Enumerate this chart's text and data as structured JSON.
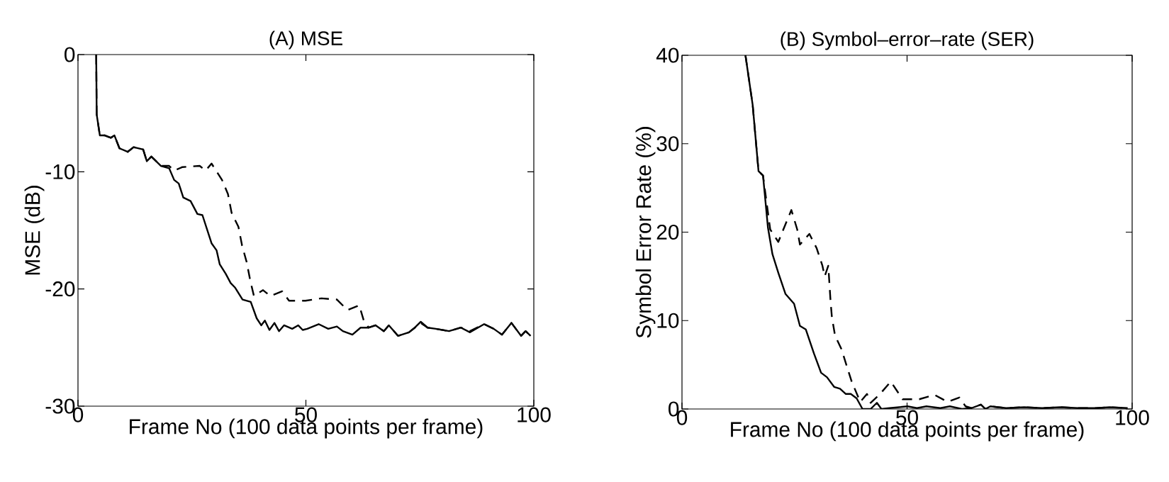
{
  "chart_data": [
    {
      "type": "line",
      "title": "(A) MSE",
      "xlabel": "Frame No (100 data points per frame)",
      "ylabel": "MSE (dB)",
      "xlim": [
        0,
        100
      ],
      "ylim": [
        -30,
        0
      ],
      "xticks": [
        0,
        50,
        100
      ],
      "yticks": [
        -30,
        -20,
        -10,
        0
      ],
      "series": [
        {
          "color": "#000000",
          "line_style": "solid",
          "x": [
            4,
            4.1,
            4.8,
            5.9,
            7.2,
            8.0,
            9.1,
            10.9,
            12.2,
            14.3,
            15.1,
            16.1,
            18.2,
            20.0,
            21.1,
            22.1,
            23.1,
            24.7,
            26.2,
            27.3,
            29.3,
            30.4,
            31.1,
            32.4,
            33.5,
            34.5,
            36.1,
            37.9,
            39.2,
            40.2,
            41.0,
            42.0,
            43.1,
            44.1,
            45.2,
            47.0,
            48.3,
            49.3,
            50.3,
            52.8,
            54.9,
            56.8,
            58.1,
            60.2,
            62.0,
            63.8,
            65.3,
            67.1,
            68.2,
            70.2,
            72.6,
            73.9,
            75.2,
            76.7,
            78.5,
            81.4,
            84.0,
            86.0,
            89.1,
            91.2,
            93.0,
            95.1,
            97.2,
            98.2,
            99.3
          ],
          "values": [
            0,
            -5.1,
            -6.9,
            -6.9,
            -7.1,
            -6.9,
            -8.0,
            -8.3,
            -7.9,
            -8.1,
            -9.1,
            -8.7,
            -9.5,
            -9.7,
            -10.7,
            -11.0,
            -12.2,
            -12.5,
            -13.6,
            -13.7,
            -16.1,
            -16.7,
            -17.9,
            -18.7,
            -19.5,
            -19.9,
            -20.9,
            -21.1,
            -22.5,
            -23.1,
            -22.7,
            -23.5,
            -22.9,
            -23.6,
            -23.1,
            -23.4,
            -23.1,
            -23.5,
            -23.4,
            -23.0,
            -23.4,
            -23.2,
            -23.6,
            -23.9,
            -23.3,
            -23.3,
            -23.1,
            -23.6,
            -23.1,
            -24.0,
            -23.7,
            -23.3,
            -22.8,
            -23.3,
            -23.4,
            -23.6,
            -23.3,
            -23.7,
            -23.0,
            -23.4,
            -23.9,
            -22.9,
            -24.0,
            -23.6,
            -24.0
          ]
        },
        {
          "color": "#000000",
          "line_style": "dashed",
          "x": [
            4,
            4.1,
            4.8,
            5.9,
            7.2,
            8.0,
            9.1,
            10.9,
            12.2,
            14.3,
            15.1,
            16.1,
            18.2,
            20.0,
            21.1,
            22.9,
            26.7,
            28.0,
            29.3,
            31.6,
            32.9,
            33.7,
            35.2,
            36.0,
            37.0,
            37.8,
            38.6,
            40.6,
            42.2,
            44.8,
            46.3,
            49.9,
            53.4,
            56.8,
            59.1,
            61.7,
            62.7,
            63.8,
            65.3,
            67.1,
            68.2,
            70.2,
            72.6,
            73.9,
            75.2,
            76.7,
            78.5,
            81.4,
            84.0,
            86.0,
            89.1,
            91.2,
            93.0,
            95.1,
            97.2,
            98.2,
            99.3
          ],
          "values": [
            0,
            -5.1,
            -6.9,
            -6.9,
            -7.1,
            -6.9,
            -8.0,
            -8.3,
            -7.9,
            -8.1,
            -9.1,
            -8.7,
            -9.5,
            -9.5,
            -9.9,
            -9.6,
            -9.5,
            -9.9,
            -9.3,
            -10.7,
            -11.9,
            -13.5,
            -14.7,
            -16.3,
            -17.7,
            -19.3,
            -20.6,
            -20.1,
            -20.6,
            -20.2,
            -21.0,
            -21.0,
            -20.8,
            -20.9,
            -21.8,
            -21.4,
            -22.7,
            -23.3,
            -23.1,
            -23.6,
            -23.1,
            -24.0,
            -23.7,
            -23.3,
            -22.9,
            -23.3,
            -23.4,
            -23.6,
            -23.3,
            -23.6,
            -23.0,
            -23.4,
            -23.9,
            -22.9,
            -24.0,
            -23.6,
            -24.0
          ]
        }
      ]
    },
    {
      "type": "line",
      "title": "(B) Symbol–error–rate (SER)",
      "xlabel": "Frame No (100 data points per frame)",
      "ylabel": "Symbol Error Rate (%)",
      "xlim": [
        0,
        100
      ],
      "ylim": [
        0,
        40
      ],
      "xticks": [
        0,
        50,
        100
      ],
      "yticks": [
        0,
        10,
        20,
        30,
        40
      ],
      "series": [
        {
          "color": "#000000",
          "line_style": "solid",
          "x": [
            14.1,
            15.7,
            17.0,
            18.0,
            19.1,
            20.1,
            21.4,
            23.0,
            24.9,
            26.2,
            27.5,
            29.3,
            30.9,
            32.2,
            33.8,
            35.1,
            36.4,
            37.5,
            38.8,
            40.1,
            41.9,
            43.3,
            44.3,
            46.1,
            48.2,
            50.1,
            52.2,
            54.3,
            57.4,
            59.5,
            62.2,
            64.3,
            66.4,
            67.4,
            68.5,
            72,
            76,
            80,
            84,
            88,
            92,
            95,
            99
          ],
          "values": [
            40,
            34.4,
            26.9,
            26.4,
            20.5,
            17.5,
            15.4,
            13.0,
            11.9,
            9.4,
            9.0,
            6.3,
            4.1,
            3.6,
            2.5,
            2.3,
            1.7,
            1.7,
            1.2,
            0,
            0,
            0.7,
            0,
            0.1,
            0.2,
            0.3,
            0.1,
            0.3,
            0.1,
            0.3,
            0,
            0.1,
            0.5,
            0,
            0.3,
            0.1,
            0.2,
            0.1,
            0.2,
            0.1,
            0.1,
            0.2,
            0.1
          ]
        },
        {
          "color": "#000000",
          "line_style": "dashed",
          "x": [
            14.1,
            15.7,
            17.0,
            18.0,
            19.6,
            21.4,
            23.0,
            24.3,
            25.6,
            26.2,
            28.3,
            29.9,
            31.2,
            31.7,
            32.5,
            33.0,
            33.3,
            34.0,
            35.4,
            36.7,
            37.7,
            39.6,
            41.1,
            41.9,
            44.0,
            46.4,
            49.0,
            52.7,
            56.1,
            59.0,
            61.6,
            63.0,
            64.3,
            66.4,
            67.4,
            68.5,
            72,
            76,
            80,
            84,
            88,
            92,
            95,
            99
          ],
          "values": [
            40,
            34.4,
            26.9,
            26.4,
            20.3,
            18.9,
            20.9,
            22.5,
            20.3,
            18.6,
            19.8,
            18.2,
            16.2,
            15.0,
            16.2,
            12.2,
            10.4,
            8.3,
            6.8,
            4.7,
            3.1,
            0.8,
            1.7,
            0.7,
            1.7,
            3.1,
            1.1,
            1.1,
            1.6,
            0.8,
            1.3,
            0.3,
            0.1,
            0.5,
            0,
            0.3,
            0.1,
            0.2,
            0.1,
            0.2,
            0.1,
            0.1,
            0.2,
            0.1
          ]
        }
      ]
    }
  ]
}
